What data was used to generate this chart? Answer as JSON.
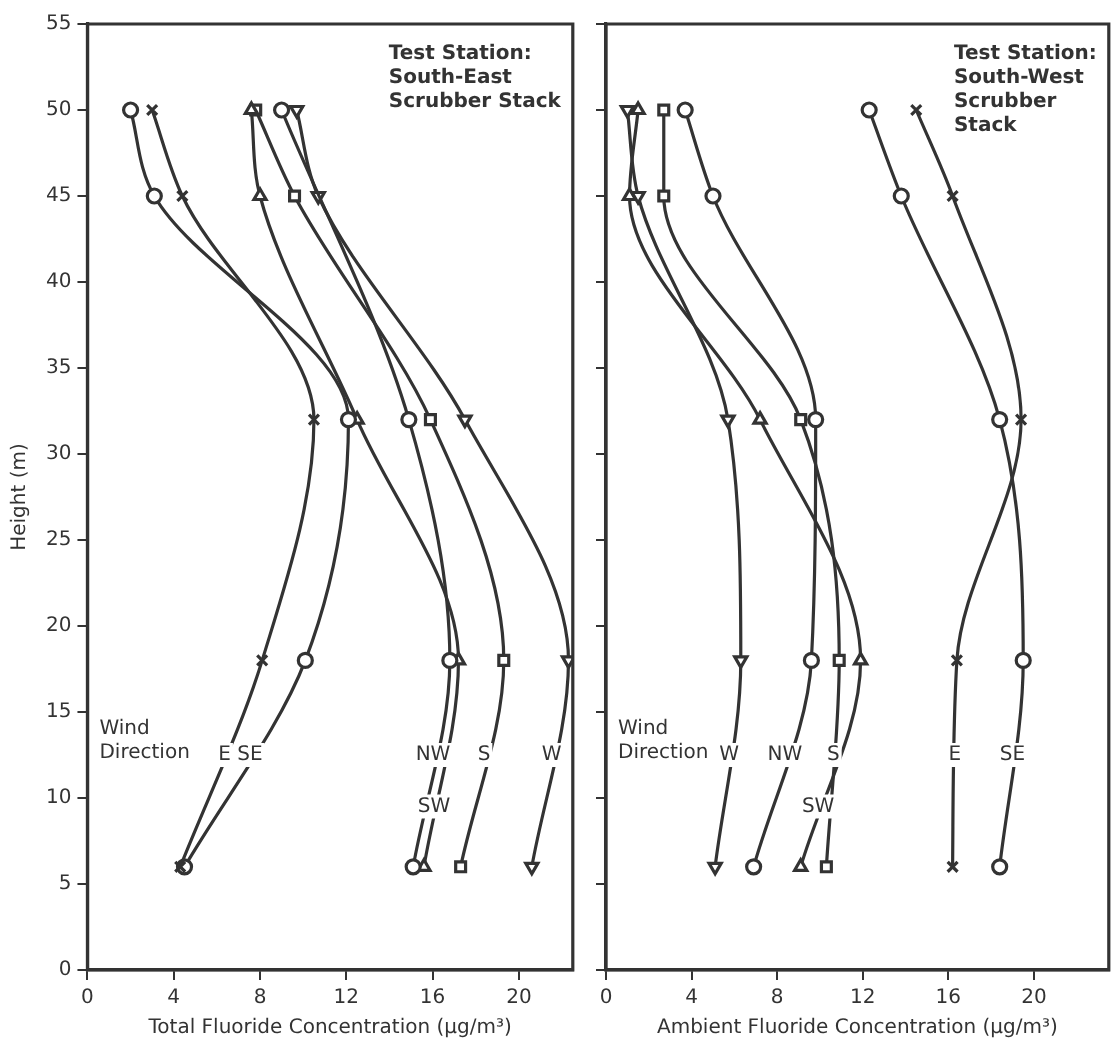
{
  "chart_data": [
    {
      "type": "line",
      "title": "Test Station:\nSouth-East\nScrubber Stack",
      "xlabel": "Total Fluoride Concentration (μg/m³)",
      "ylabel": "Height (m)",
      "annotations": [
        "Wind\nDirection"
      ],
      "xlim": [
        0,
        22.5
      ],
      "xticks": [
        0,
        4,
        8,
        12,
        16,
        20
      ],
      "ylim": [
        0,
        55
      ],
      "yticks": [
        0,
        5,
        10,
        15,
        20,
        25,
        30,
        35,
        40,
        45,
        50,
        55
      ],
      "grid": false,
      "legend": false,
      "line_style": "solid",
      "series": [
        {
          "name": "E",
          "color": "#333333",
          "marker": "cross",
          "x": [
            3.0,
            4.4,
            10.5,
            8.1,
            4.3
          ],
          "values": [
            50,
            45,
            32,
            18,
            6
          ]
        },
        {
          "name": "SE",
          "color": "#333333",
          "marker": "circle",
          "x": [
            2.0,
            3.1,
            12.1,
            10.1,
            4.5
          ],
          "values": [
            50,
            45,
            32,
            18,
            6
          ]
        },
        {
          "name": "NW",
          "color": "#333333",
          "marker": "circle",
          "x": [
            9.0,
            14.9,
            16.8,
            15.1
          ],
          "values": [
            50,
            32,
            18,
            6
          ]
        },
        {
          "name": "SW",
          "color": "#333333",
          "marker": "triangle",
          "x": [
            7.6,
            8.0,
            12.5,
            17.2,
            15.6
          ],
          "values": [
            50,
            45,
            32,
            18,
            6
          ]
        },
        {
          "name": "S",
          "color": "#333333",
          "marker": "square",
          "x": [
            7.8,
            9.6,
            15.9,
            19.3,
            17.3
          ],
          "values": [
            50,
            45,
            32,
            18,
            6
          ]
        },
        {
          "name": "W",
          "color": "#333333",
          "marker": "triangle-down",
          "x": [
            9.7,
            10.7,
            17.5,
            22.3,
            20.6
          ],
          "values": [
            50,
            45,
            32,
            18,
            6
          ]
        }
      ]
    },
    {
      "type": "line",
      "title": "Test Station:\nSouth-West\nScrubber\nStack",
      "xlabel": "Ambient Fluoride Concentration (μg/m³)",
      "annotations": [
        "Wind\nDirection"
      ],
      "xlim": [
        0,
        23.5
      ],
      "xticks": [
        0,
        4,
        8,
        12,
        16,
        20
      ],
      "ylim": [
        0,
        55
      ],
      "yticks": [
        0,
        5,
        10,
        15,
        20,
        25,
        30,
        35,
        40,
        45,
        50,
        55
      ],
      "tick_labels": "x",
      "grid": false,
      "legend": false,
      "line_style": "solid",
      "series": [
        {
          "name": "W",
          "color": "#333333",
          "marker": "triangle-down",
          "x": [
            1.0,
            1.5,
            5.7,
            6.3,
            5.1
          ],
          "values": [
            50,
            45,
            32,
            18,
            6
          ]
        },
        {
          "name": "NW",
          "color": "#333333",
          "marker": "circle",
          "x": [
            3.7,
            5.0,
            9.8,
            9.6,
            6.9
          ],
          "values": [
            50,
            45,
            32,
            18,
            6
          ]
        },
        {
          "name": "S",
          "color": "#333333",
          "marker": "square",
          "x": [
            2.7,
            2.7,
            9.1,
            10.9,
            10.3
          ],
          "values": [
            50,
            45,
            32,
            18,
            6
          ]
        },
        {
          "name": "SW",
          "color": "#333333",
          "marker": "triangle",
          "x": [
            1.5,
            1.1,
            7.2,
            11.9,
            9.1
          ],
          "values": [
            50,
            45,
            32,
            18,
            6
          ]
        },
        {
          "name": "E",
          "color": "#333333",
          "marker": "cross",
          "x": [
            14.5,
            16.2,
            19.4,
            16.4,
            16.2
          ],
          "values": [
            50,
            45,
            32,
            18,
            6
          ]
        },
        {
          "name": "SE",
          "color": "#333333",
          "marker": "circle",
          "x": [
            12.3,
            13.8,
            18.4,
            19.5,
            18.4
          ],
          "values": [
            50,
            45,
            32,
            18,
            6
          ]
        }
      ]
    }
  ]
}
